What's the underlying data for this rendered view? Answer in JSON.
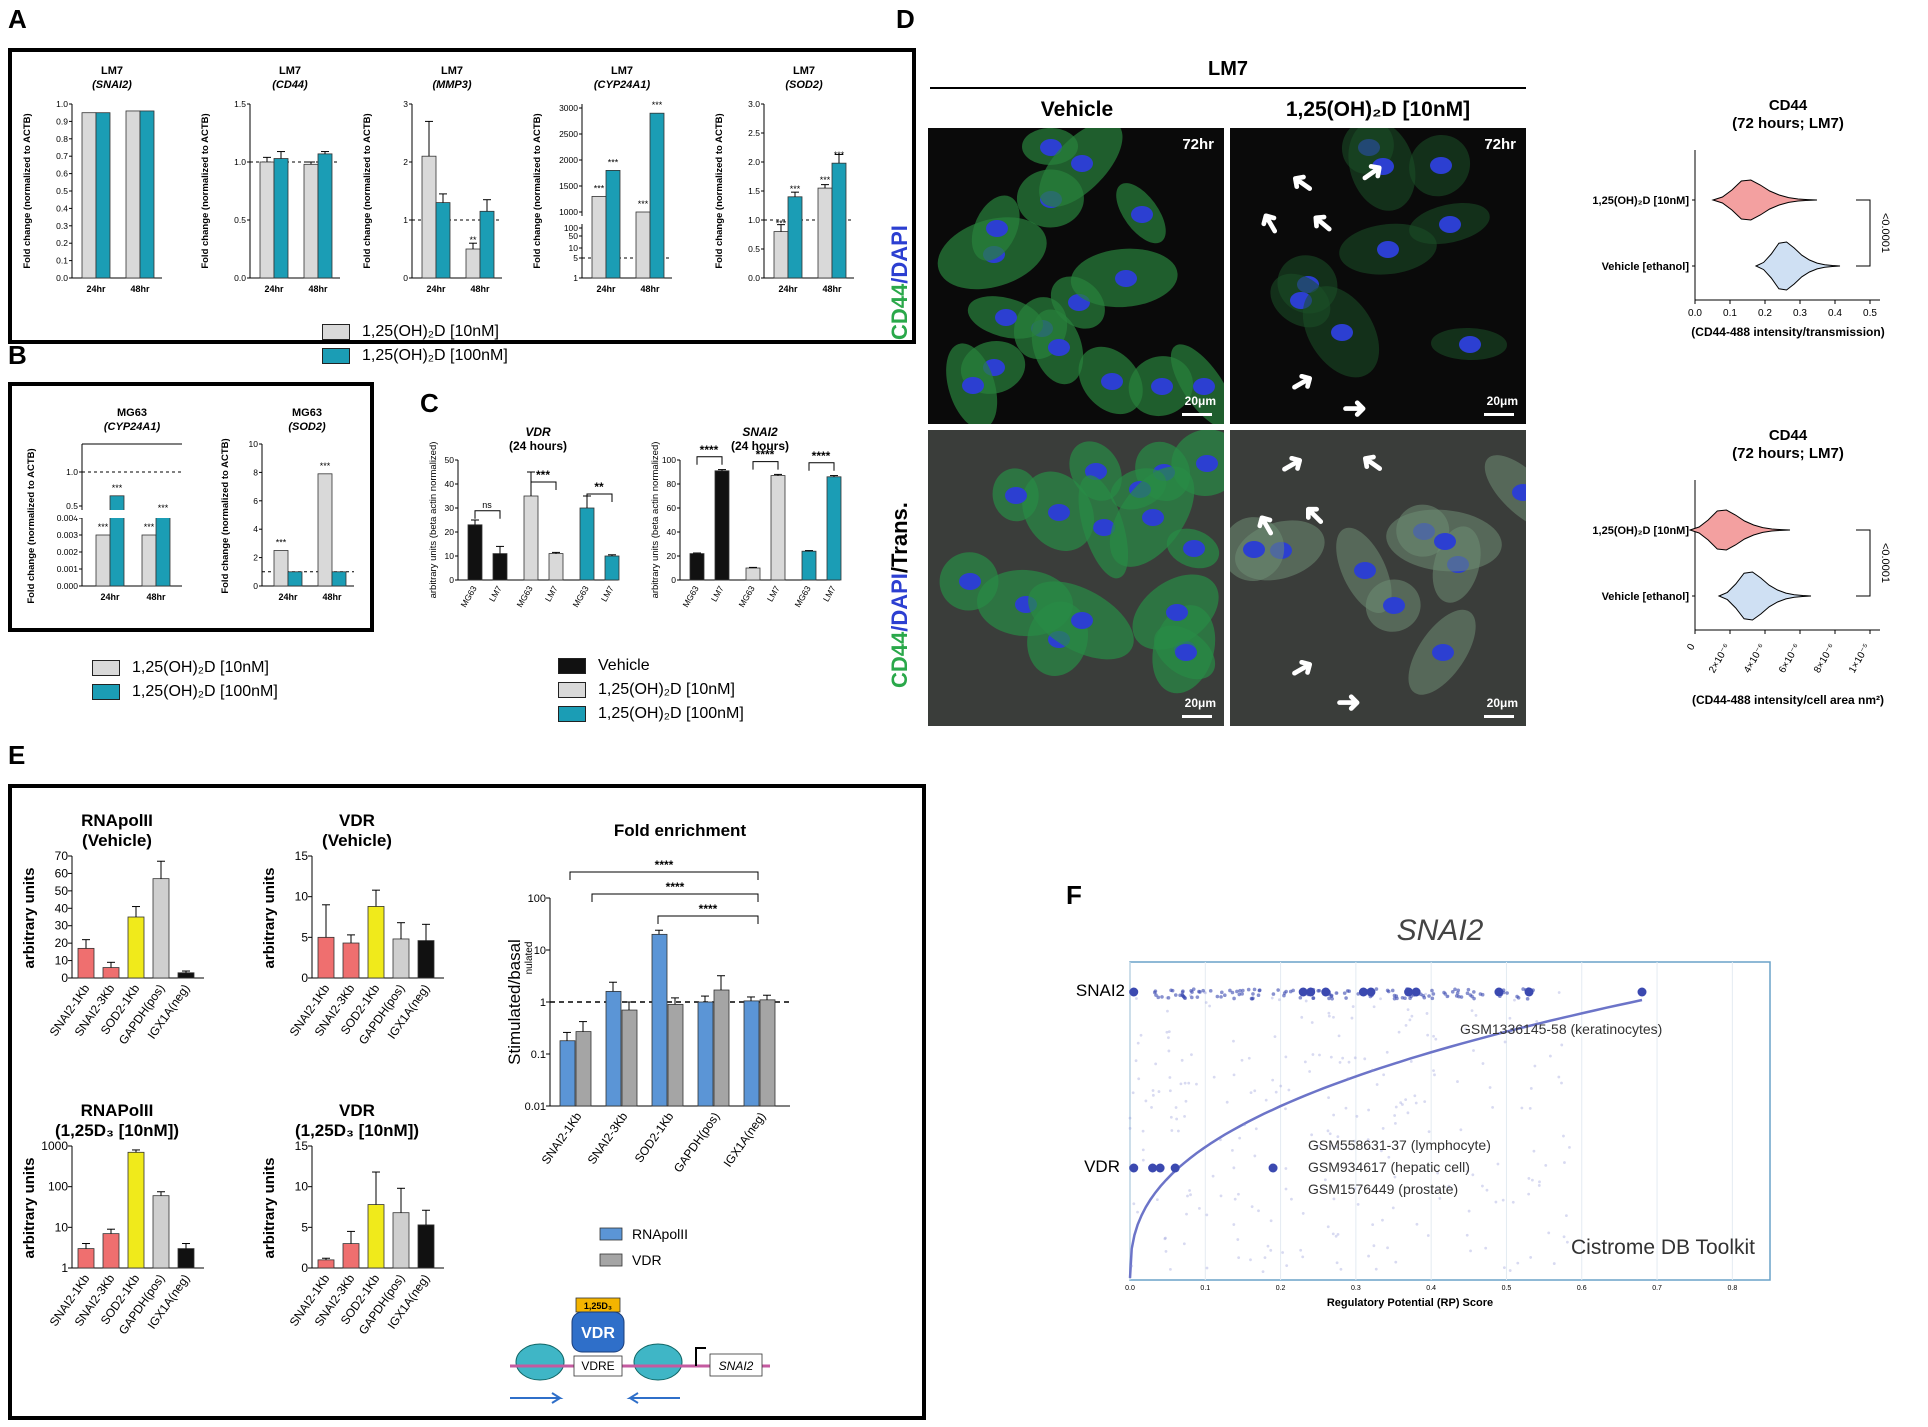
{
  "panel_letters": [
    "A",
    "B",
    "C",
    "D",
    "E",
    "F"
  ],
  "colors": {
    "gray": "#d9d9d9",
    "teal": "#1b9db5",
    "black": "#111111",
    "red": "#ef6f6f",
    "yellow": "#f0ea1b",
    "lightgray": "#cfcfcf",
    "blue": "#5b95d6",
    "vdrgray": "#a5a5a5"
  },
  "panelA": {
    "ylabel": "Fold change (normalized to ACTB)",
    "x": [
      "24hr",
      "48hr"
    ],
    "charts": [
      {
        "line": "LM7",
        "gene": "(SNAI2)",
        "yticks": [
          "0.0",
          "0.1",
          "0.2",
          "0.3",
          "0.4",
          "0.5",
          "0.6",
          "0.7",
          "0.8",
          "0.9",
          "1.0"
        ]
      },
      {
        "line": "LM7",
        "gene": "(CD44)",
        "yticks": [
          "0.0",
          "0.5",
          "1.0",
          "1.5"
        ]
      },
      {
        "line": "LM7",
        "gene": "(MMP3)",
        "yticks": [
          "0",
          "1",
          "2",
          "3"
        ],
        "stars": [
          "",
          "**"
        ]
      },
      {
        "line": "LM7",
        "gene": "(CYP24A1)",
        "yticks": [
          "1",
          "5",
          "10",
          "50",
          "100",
          "1000",
          "1500",
          "2000",
          "2500",
          "3000"
        ],
        "stars": [
          "***",
          "***"
        ]
      },
      {
        "line": "LM7",
        "gene": "(SOD2)",
        "yticks": [
          "0.0",
          "0.5",
          "1.0",
          "1.5",
          "2.0",
          "2.5",
          "3.0"
        ],
        "stars": [
          "***",
          "***"
        ]
      }
    ]
  },
  "chart_data": [
    {
      "type": "bar",
      "panel": "A",
      "title": "LM7 (SNAI2)",
      "categories": [
        "24hr",
        "48hr"
      ],
      "series": [
        {
          "name": "1,25(OH)2D [10nM]",
          "values": [
            0.95,
            0.96
          ]
        },
        {
          "name": "1,25(OH)2D [100nM]",
          "values": [
            0.95,
            0.96
          ]
        }
      ],
      "ylim": [
        0,
        1.0
      ]
    },
    {
      "type": "bar",
      "panel": "A",
      "title": "LM7 (CD44)",
      "categories": [
        "24hr",
        "48hr"
      ],
      "series": [
        {
          "name": "1,25(OH)2D [10nM]",
          "values": [
            1.0,
            0.98
          ]
        },
        {
          "name": "1,25(OH)2D [100nM]",
          "values": [
            1.03,
            1.07
          ]
        }
      ],
      "ylim": [
        0,
        1.5
      ]
    },
    {
      "type": "bar",
      "panel": "A",
      "title": "LM7 (MMP3)",
      "categories": [
        "24hr",
        "48hr"
      ],
      "series": [
        {
          "name": "1,25(OH)2D [10nM]",
          "values": [
            2.1,
            0.5
          ]
        },
        {
          "name": "1,25(OH)2D [100nM]",
          "values": [
            1.3,
            1.15
          ]
        }
      ],
      "ylim": [
        0,
        3
      ]
    },
    {
      "type": "bar",
      "panel": "A",
      "title": "LM7 (CYP24A1)",
      "categories": [
        "24hr",
        "48hr"
      ],
      "series": [
        {
          "name": "1,25(OH)2D [10nM]",
          "values": [
            1300,
            1000
          ]
        },
        {
          "name": "1,25(OH)2D [100nM]",
          "values": [
            1800,
            2900
          ]
        }
      ]
    },
    {
      "type": "bar",
      "panel": "A",
      "title": "LM7 (SOD2)",
      "categories": [
        "24hr",
        "48hr"
      ],
      "series": [
        {
          "name": "1,25(OH)2D [10nM]",
          "values": [
            0.8,
            1.55
          ]
        },
        {
          "name": "1,25(OH)2D [100nM]",
          "values": [
            1.4,
            1.98
          ]
        }
      ],
      "ylim": [
        0,
        3.0
      ]
    },
    {
      "type": "bar",
      "panel": "B",
      "title": "MG63 (CYP24A1)",
      "categories": [
        "24hr",
        "48hr"
      ],
      "series": [
        {
          "name": "1,25(OH)2D [10nM]",
          "values": [
            0.003,
            0.003
          ]
        },
        {
          "name": "1,25(OH)2D [100nM]",
          "values": [
            0.65,
            0.35
          ]
        }
      ]
    },
    {
      "type": "bar",
      "panel": "B",
      "title": "MG63 (SOD2)",
      "categories": [
        "24hr",
        "48hr"
      ],
      "series": [
        {
          "name": "1,25(OH)2D [10nM]",
          "values": [
            2.5,
            7.9
          ]
        },
        {
          "name": "1,25(OH)2D [100nM]",
          "values": [
            1.0,
            1.0
          ]
        }
      ],
      "ylim": [
        0,
        10
      ]
    },
    {
      "type": "bar",
      "panel": "C",
      "title": "VDR (24 hours)",
      "categories": [
        "MG63",
        "LM7",
        "MG63",
        "LM7",
        "MG63",
        "LM7"
      ],
      "values": [
        23,
        11,
        35,
        11,
        30,
        10
      ],
      "ylim": [
        0,
        50
      ]
    },
    {
      "type": "bar",
      "panel": "C",
      "title": "SNAI2 (24 hours)",
      "categories": [
        "MG63",
        "LM7",
        "MG63",
        "LM7",
        "MG63",
        "LM7"
      ],
      "values": [
        22,
        91,
        10,
        87,
        24,
        86
      ],
      "ylim": [
        0,
        100
      ]
    },
    {
      "type": "bar",
      "panel": "E",
      "title": "RNApolII (Vehicle)",
      "categories": [
        "SNAI2-1Kb",
        "SNAI2-3Kb",
        "SOD2-1Kb",
        "GAPDH(pos)",
        "IGX1A(neg)"
      ],
      "values": [
        17,
        6,
        35,
        57,
        3
      ],
      "ylim": [
        0,
        70
      ]
    },
    {
      "type": "bar",
      "panel": "E",
      "title": "VDR (Vehicle)",
      "categories": [
        "SNAI2-1Kb",
        "SNAI2-3Kb",
        "SOD2-1Kb",
        "GAPDH(pos)",
        "IGX1A(neg)"
      ],
      "values": [
        5,
        4.3,
        8.8,
        4.8,
        4.6
      ],
      "ylim": [
        0,
        15
      ]
    },
    {
      "type": "bar",
      "panel": "E",
      "title": "RNAPolII (1,25D3 [10nM])",
      "categories": [
        "SNAI2-1Kb",
        "SNAI2-3Kb",
        "SOD2-1Kb",
        "GAPDH(pos)",
        "IGX1A(neg)"
      ],
      "values": [
        3,
        7,
        700,
        60,
        3
      ]
    },
    {
      "type": "bar",
      "panel": "E",
      "title": "VDR (1,25D3 [10nM])",
      "categories": [
        "SNAI2-1Kb",
        "SNAI2-3Kb",
        "SOD2-1Kb",
        "GAPDH(pos)",
        "IGX1A(neg)"
      ],
      "values": [
        1,
        3,
        7.8,
        6.8,
        5.3
      ],
      "ylim": [
        0,
        15
      ]
    },
    {
      "type": "bar",
      "panel": "E",
      "title": "Fold enrichment",
      "categories": [
        "SNAI2-1Kb",
        "SNAI2-3Kb",
        "SOD2-1Kb",
        "GAPDH(pos)",
        "IGX1A(neg)"
      ],
      "series": [
        {
          "name": "RNApolII",
          "values": [
            0.18,
            1.6,
            20,
            1.0,
            1.05
          ]
        },
        {
          "name": "VDR",
          "values": [
            0.27,
            0.7,
            0.9,
            1.7,
            1.1
          ]
        }
      ],
      "ylim": [
        0.01,
        100
      ]
    },
    {
      "type": "scatter",
      "panel": "F",
      "title": "SNAI2",
      "xlabel": "Regulatory Potential (RP) Score",
      "xlim": [
        0,
        0.85
      ]
    }
  ],
  "panelB": {
    "ylabel": "Fold change (normalized to ACTB)",
    "x": [
      "24hr",
      "48hr"
    ],
    "charts": [
      {
        "line": "MG63",
        "gene": "(CYP24A1)",
        "yticks": [
          "0.000",
          "0.001",
          "0.002",
          "0.003",
          "0.004",
          "0.5",
          "1.0"
        ],
        "stars": [
          "***",
          "***",
          "***",
          "***"
        ]
      },
      {
        "line": "MG63",
        "gene": "(SOD2)",
        "yticks": [
          "0",
          "2",
          "4",
          "6",
          "8",
          "10"
        ],
        "stars": [
          "***",
          "***"
        ]
      }
    ]
  },
  "legendAB": [
    "1,25(OH)₂D [10nM]",
    "1,25(OH)₂D [100nM]"
  ],
  "panelC": {
    "ylabel1": "arbitrary units (beta actin normalized)",
    "ylabel2": "arbitrary units (beta actin normalized)",
    "xcats": [
      "MG63",
      "LM7",
      "MG63",
      "LM7",
      "MG63",
      "LM7"
    ],
    "vdr": {
      "title1": "VDR",
      "title2": "(24 hours)",
      "yticks": [
        "0",
        "10",
        "20",
        "30",
        "40",
        "50"
      ],
      "sig": [
        "ns",
        "***",
        "**"
      ]
    },
    "snai2": {
      "title1": "SNAI2",
      "title2": "(24 hours)",
      "yticks": [
        "0",
        "20",
        "40",
        "60",
        "80",
        "100"
      ],
      "sig": [
        "****",
        "****",
        "****"
      ]
    },
    "legend": [
      "Vehicle",
      "1,25(OH)₂D [10nM]",
      "1,25(OH)₂D [100nM]"
    ]
  },
  "panelD": {
    "header": "LM7",
    "col1": "Vehicle",
    "col2": "1,25(OH)₂D [10nM]",
    "time": "72hr",
    "scale": "20μm",
    "row1_label_a": "CD44",
    "row1_label_b": "/DAPI",
    "row2_label_a": "CD44",
    "row2_label_b": "/DAPI",
    "row2_label_c": "/Trans.",
    "violin1": {
      "title1": "CD44",
      "title2": "(72 hours; LM7)",
      "groups": [
        "1,25(OH)₂D [10nM]",
        "Vehicle [ethanol]"
      ],
      "xticks": [
        "0.0",
        "0.1",
        "0.2",
        "0.3",
        "0.4",
        "0.5"
      ],
      "xlabel": "(CD44-488 intensity/transmission)",
      "p": "<0.0001"
    },
    "violin2": {
      "title1": "CD44",
      "title2": "(72 hours; LM7)",
      "groups": [
        "1,25(OH)₂D [10nM]",
        "Vehicle [ethanol]"
      ],
      "xticks": [
        "0",
        "2×10⁻⁶",
        "4×10⁻⁶",
        "6×10⁻⁶",
        "8×10⁻⁶",
        "1×10⁻⁵"
      ],
      "xlabel": "(CD44-488 intensity/cell area nm²)",
      "p": "<0.0001"
    }
  },
  "panelE": {
    "ylabel": "arbitrary units",
    "cats": [
      "SNAI2-1Kb",
      "SNAI2-3Kb",
      "SOD2-1Kb",
      "GAPDH(pos)",
      "IGX1A(neg)"
    ],
    "c1": {
      "title1": "RNApolII",
      "title2": "(Vehicle)",
      "yticks": [
        "0",
        "10",
        "20",
        "30",
        "40",
        "50",
        "60",
        "70"
      ]
    },
    "c2": {
      "title1": "VDR",
      "title2": "(Vehicle)",
      "yticks": [
        "0",
        "5",
        "10",
        "15"
      ]
    },
    "c3": {
      "title1": "RNAPolII",
      "title2": "(1,25D₃ [10nM])",
      "yticks": [
        "1",
        "10",
        "100",
        "1000"
      ]
    },
    "c4": {
      "title1": "VDR",
      "title2": "(1,25D₃ [10nM])",
      "yticks": [
        "0",
        "5",
        "10",
        "15"
      ]
    },
    "c5": {
      "title": "Fold enrichment",
      "yticks": [
        "0.01",
        "0.1",
        "1",
        "10",
        "100"
      ],
      "ylabel": "Stimulated/basal",
      "ylabel_sup": "nulated",
      "sig": [
        "****",
        "****",
        "****"
      ]
    },
    "legend": [
      "RNApolII",
      "VDR"
    ],
    "diagram": {
      "ligand": "1,25D₃",
      "receptor": "VDR",
      "element": "VDRE",
      "gene": "SNAI2"
    }
  },
  "panelF": {
    "title": "SNAI2",
    "rowlabel1": "SNAI2",
    "rowlabel2": "VDR",
    "ann1": "GSM1336145-58 (keratinocytes)",
    "ann2": "GSM558631-37 (lymphocyte)",
    "ann3": "GSM934617 (hepatic cell)",
    "ann4": "GSM1576449 (prostate)",
    "watermark": "Cistrome DB Toolkit",
    "xlabel": "Regulatory Potential (RP) Score",
    "xticks": [
      "0.0",
      "0.1",
      "0.2",
      "0.3",
      "0.4",
      "0.5",
      "0.6",
      "0.7",
      "0.8"
    ]
  }
}
